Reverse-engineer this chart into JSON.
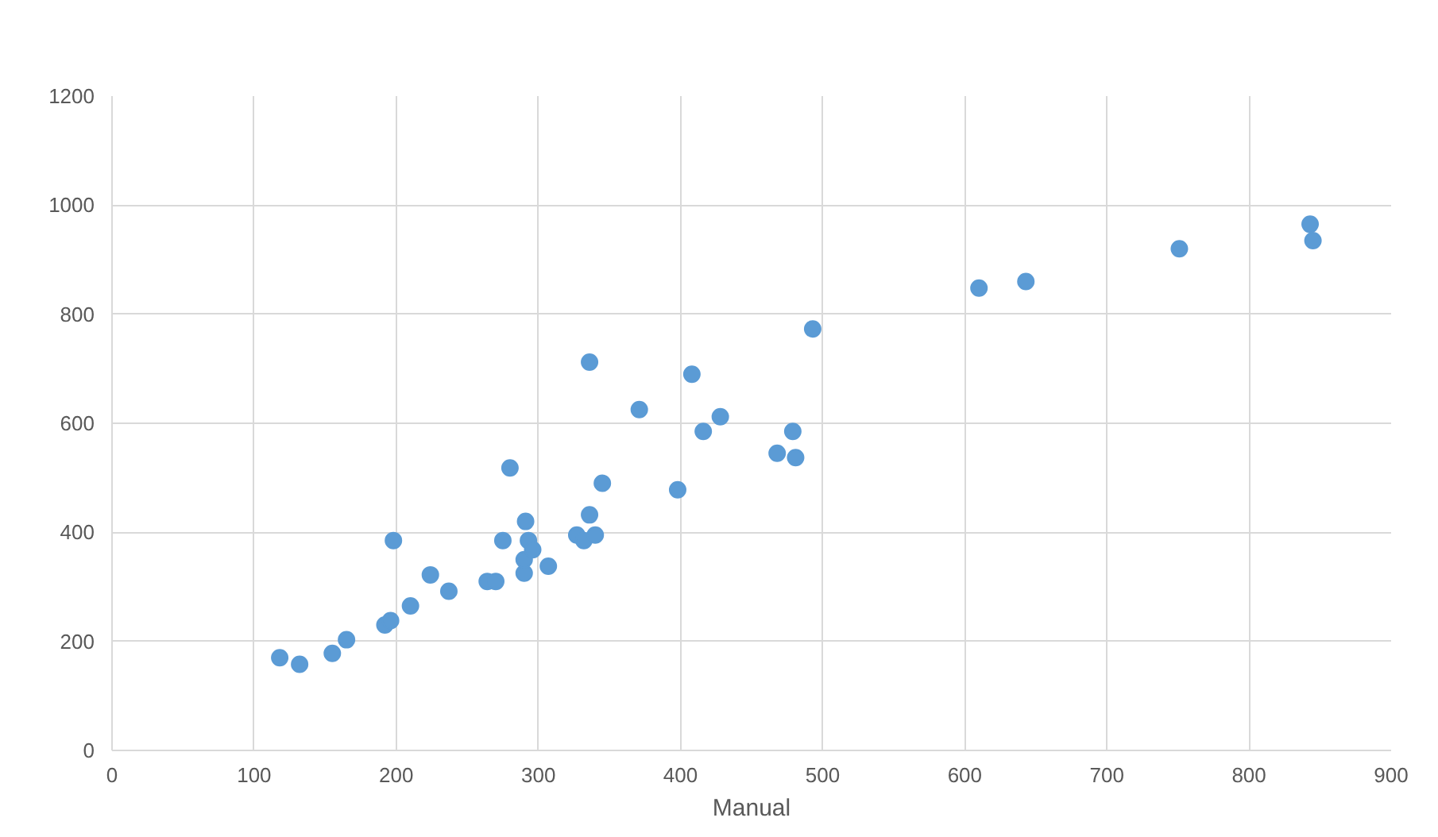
{
  "chart_data": {
    "type": "scatter",
    "xlabel": "Manual",
    "x": [
      118,
      132,
      155,
      165,
      192,
      196,
      198,
      210,
      224,
      237,
      264,
      270,
      275,
      280,
      290,
      290,
      291,
      293,
      296,
      307,
      327,
      332,
      336,
      336,
      340,
      345,
      371,
      398,
      408,
      416,
      428,
      468,
      479,
      481,
      493,
      610,
      643,
      751,
      843,
      845
    ],
    "values": [
      170,
      158,
      178,
      203,
      230,
      238,
      385,
      265,
      322,
      292,
      310,
      310,
      385,
      518,
      325,
      350,
      420,
      385,
      368,
      338,
      395,
      385,
      712,
      432,
      395,
      490,
      625,
      478,
      690,
      585,
      612,
      545,
      585,
      537,
      773,
      848,
      860,
      920,
      965,
      935
    ],
    "color": "#5b9bd5",
    "marker": "circle",
    "xlim": [
      0,
      900
    ],
    "xticks": [
      0,
      100,
      200,
      300,
      400,
      500,
      600,
      700,
      800,
      900
    ],
    "ylim": [
      0,
      1200
    ],
    "yticks": [
      0,
      200,
      400,
      600,
      800,
      1000,
      1200
    ],
    "grid": true
  }
}
